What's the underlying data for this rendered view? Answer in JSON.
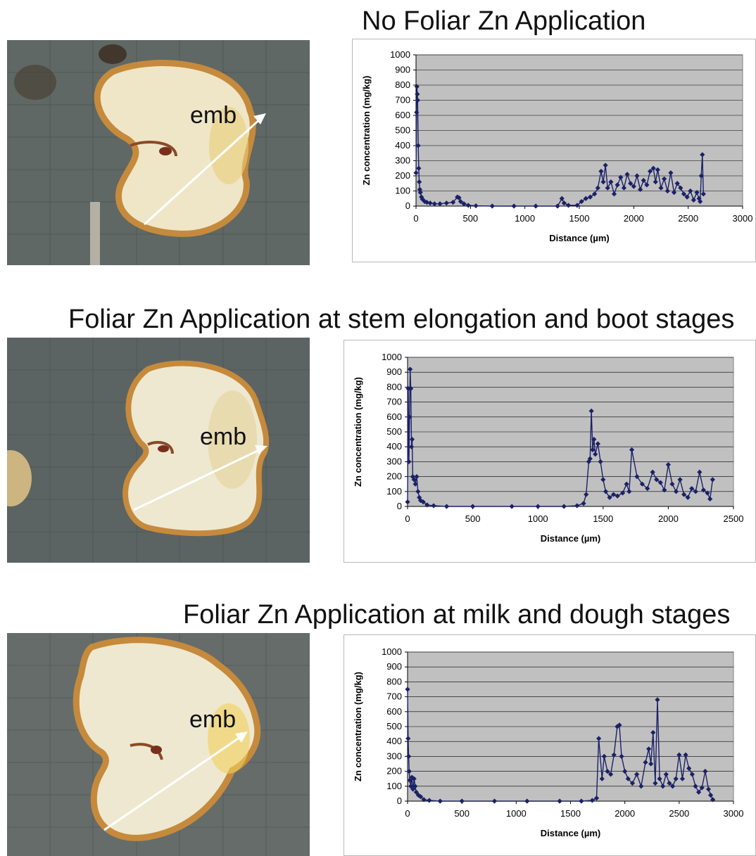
{
  "panels": [
    {
      "title": "No Foliar Zn Application",
      "embryo_label": "emb",
      "chart_data": {
        "type": "line",
        "xlabel": "Distance (µm)",
        "ylabel": "Zn concentration (mg/kg)",
        "xlim": [
          0,
          3000
        ],
        "ylim": [
          0,
          1000
        ],
        "xticks": [
          0,
          500,
          1000,
          1500,
          2000,
          2500,
          3000
        ],
        "yticks": [
          0,
          100,
          200,
          300,
          400,
          500,
          600,
          700,
          800,
          900,
          1000
        ],
        "grid": true,
        "marker": "diamond",
        "series_color": "#1b2167",
        "plot_background": "#c0c0c0",
        "series": [
          {
            "x": [
              0,
              5,
              8,
              12,
              15,
              20,
              25,
              30,
              35,
              40,
              50,
              60,
              80,
              100,
              130,
              170,
              220,
              280,
              340,
              380,
              395,
              410,
              440,
              480,
              550,
              700,
              900,
              1100,
              1300,
              1340,
              1360,
              1400,
              1480,
              1520,
              1560,
              1600,
              1640,
              1670,
              1700,
              1720,
              1740,
              1760,
              1790,
              1820,
              1850,
              1880,
              1910,
              1940,
              1970,
              2000,
              2030,
              2060,
              2090,
              2120,
              2150,
              2180,
              2200,
              2220,
              2250,
              2280,
              2310,
              2340,
              2370,
              2400,
              2430,
              2460,
              2490,
              2520,
              2550,
              2580,
              2600,
              2610,
              2620,
              2630,
              2640
            ],
            "y": [
              220,
              620,
              790,
              740,
              700,
              400,
              250,
              160,
              110,
              90,
              60,
              45,
              30,
              25,
              20,
              15,
              15,
              20,
              25,
              60,
              55,
              30,
              15,
              5,
              2,
              0,
              0,
              0,
              0,
              50,
              20,
              5,
              5,
              30,
              50,
              60,
              80,
              120,
              230,
              160,
              270,
              120,
              160,
              80,
              140,
              190,
              120,
              210,
              150,
              130,
              200,
              110,
              170,
              140,
              230,
              250,
              160,
              240,
              120,
              180,
              100,
              220,
              90,
              150,
              120,
              80,
              60,
              100,
              40,
              90,
              50,
              30,
              200,
              340,
              80
            ]
          }
        ]
      }
    },
    {
      "title": "Foliar Zn Application at stem elongation and boot stages",
      "embryo_label": "emb",
      "chart_data": {
        "type": "line",
        "xlabel": "Distance (µm)",
        "ylabel": "Zn concentration (mg/kg)",
        "xlim": [
          0,
          2500
        ],
        "ylim": [
          0,
          1000
        ],
        "xticks": [
          0,
          500,
          1000,
          1500,
          2000,
          2500
        ],
        "yticks": [
          0,
          100,
          200,
          300,
          400,
          500,
          600,
          700,
          800,
          900,
          1000
        ],
        "grid": true,
        "marker": "diamond",
        "series_color": "#1b2167",
        "plot_background": "#c0c0c0",
        "series": [
          {
            "x": [
              0,
              5,
              10,
              15,
              20,
              25,
              30,
              35,
              40,
              50,
              60,
              70,
              80,
              90,
              100,
              120,
              150,
              200,
              300,
              500,
              800,
              1000,
              1200,
              1300,
              1350,
              1370,
              1390,
              1400,
              1410,
              1420,
              1430,
              1440,
              1460,
              1480,
              1500,
              1520,
              1550,
              1580,
              1610,
              1650,
              1680,
              1700,
              1720,
              1760,
              1800,
              1840,
              1880,
              1910,
              1940,
              1970,
              2000,
              2030,
              2060,
              2090,
              2120,
              2150,
              2180,
              2210,
              2240,
              2270,
              2300,
              2320,
              2340
            ],
            "y": [
              30,
              790,
              300,
              600,
              920,
              790,
              400,
              450,
              200,
              180,
              150,
              200,
              100,
              60,
              40,
              30,
              10,
              5,
              0,
              0,
              0,
              0,
              0,
              5,
              20,
              80,
              300,
              320,
              640,
              380,
              450,
              350,
              420,
              300,
              180,
              100,
              60,
              80,
              70,
              90,
              150,
              100,
              380,
              200,
              150,
              120,
              230,
              180,
              160,
              110,
              280,
              150,
              100,
              180,
              80,
              60,
              120,
              100,
              230,
              110,
              90,
              50,
              180
            ]
          }
        ]
      }
    },
    {
      "title": "Foliar Zn Application at milk and dough stages",
      "embryo_label": "emb",
      "chart_data": {
        "type": "line",
        "xlabel": "Distance (µm)",
        "ylabel": "Zn concentration (mg/kg)",
        "xlim": [
          0,
          3000
        ],
        "ylim": [
          0,
          1000
        ],
        "xticks": [
          0,
          500,
          1000,
          1500,
          2000,
          2500,
          3000
        ],
        "yticks": [
          0,
          100,
          200,
          300,
          400,
          500,
          600,
          700,
          800,
          900,
          1000
        ],
        "grid": true,
        "marker": "diamond",
        "series_color": "#1b2167",
        "plot_background": "#c0c0c0",
        "series": [
          {
            "x": [
              0,
              5,
              10,
              15,
              20,
              30,
              40,
              50,
              60,
              70,
              80,
              100,
              120,
              150,
              200,
              300,
              500,
              800,
              1100,
              1400,
              1600,
              1700,
              1740,
              1760,
              1790,
              1810,
              1840,
              1870,
              1900,
              1930,
              1950,
              1970,
              2000,
              2030,
              2070,
              2110,
              2150,
              2190,
              2220,
              2240,
              2260,
              2280,
              2300,
              2320,
              2350,
              2380,
              2410,
              2440,
              2470,
              2500,
              2530,
              2560,
              2590,
              2620,
              2650,
              2680,
              2710,
              2740,
              2770,
              2790,
              2810
            ],
            "y": [
              750,
              420,
              300,
              200,
              140,
              100,
              160,
              80,
              150,
              100,
              60,
              40,
              30,
              10,
              5,
              0,
              0,
              0,
              0,
              0,
              0,
              5,
              20,
              420,
              150,
              300,
              200,
              180,
              310,
              500,
              510,
              300,
              200,
              150,
              120,
              180,
              100,
              260,
              350,
              250,
              460,
              120,
              680,
              150,
              100,
              180,
              120,
              100,
              150,
              310,
              150,
              310,
              220,
              180,
              100,
              60,
              90,
              200,
              80,
              40,
              10
            ]
          }
        ]
      }
    }
  ]
}
